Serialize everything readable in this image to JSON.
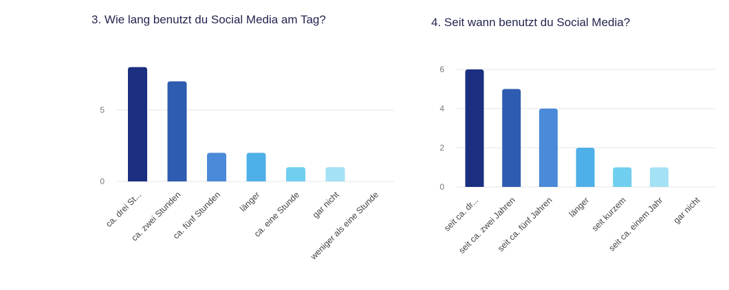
{
  "chart_data": [
    {
      "type": "bar",
      "title": "3. Wie lang benutzt du Social Media am Tag?",
      "categories": [
        "ca. drei St...",
        "ca. zwei Stunden",
        "ca. fünf Stunden",
        "länger",
        "ca. eine Stunde",
        "gar nicht",
        "weniger als eine Stunde"
      ],
      "values": [
        8,
        7,
        2,
        2,
        1,
        1,
        0
      ],
      "yticks": [
        0,
        5
      ],
      "ylim": [
        0,
        8
      ],
      "grid": true,
      "xlabel": "",
      "ylabel": "",
      "colors": [
        "#1b2f80",
        "#2e5cb0",
        "#4a8ad8",
        "#4fafe8",
        "#70cfef",
        "#a5e1f4",
        "#c9eef9"
      ]
    },
    {
      "type": "bar",
      "title": "4. Seit wann benutzt du Social Media?",
      "categories": [
        "seit ca. dr...",
        "seit ca. zwei Jahren",
        "seit ca. fünf Jahren",
        "länger",
        "seit kurzem",
        "seit ca. einem Jahr",
        "gar nicht"
      ],
      "values": [
        6,
        5,
        4,
        2,
        1,
        1,
        0
      ],
      "yticks": [
        0,
        2,
        4,
        6
      ],
      "ylim": [
        0,
        6
      ],
      "grid": true,
      "xlabel": "",
      "ylabel": "",
      "colors": [
        "#1b2f80",
        "#2e5cb0",
        "#4a8ad8",
        "#4fafe8",
        "#70cfef",
        "#a5e1f4",
        "#c9eef9"
      ]
    }
  ]
}
